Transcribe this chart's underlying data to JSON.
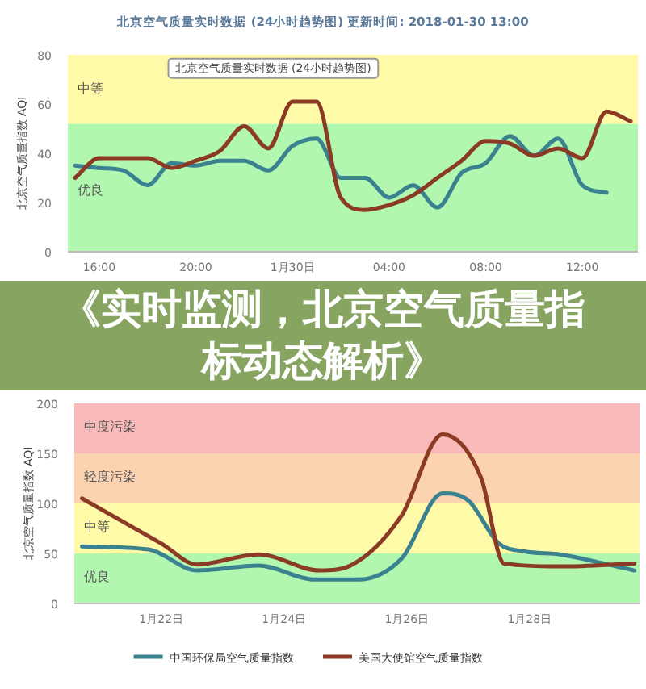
{
  "chart_data": [
    {
      "type": "line",
      "title": "北京空气质量实时数据 (24小时趋势图) 更新时间: 2018-01-30 13:00",
      "ylabel": "北京空气质量指数 AQI",
      "x": [
        "2018-01-29T15:00",
        "2018-01-29T16:00",
        "2018-01-29T17:00",
        "2018-01-29T18:00",
        "2018-01-29T19:00",
        "2018-01-29T20:00",
        "2018-01-29T21:00",
        "2018-01-29T22:00",
        "2018-01-29T23:00",
        "2018-01-30T00:00",
        "2018-01-30T01:00",
        "2018-01-30T02:00",
        "2018-01-30T03:00",
        "2018-01-30T04:00",
        "2018-01-30T05:00",
        "2018-01-30T06:00",
        "2018-01-30T07:00",
        "2018-01-30T08:00",
        "2018-01-30T09:00",
        "2018-01-30T10:00",
        "2018-01-30T11:00",
        "2018-01-30T12:00",
        "2018-01-30T13:00",
        "2018-01-30T14:00"
      ],
      "series": [
        {
          "color": "#3a8290",
          "values": [
            35,
            34,
            33,
            27,
            36,
            35,
            37,
            37,
            33,
            43,
            46,
            30,
            30,
            22,
            27,
            18,
            32,
            36,
            47,
            39,
            46,
            27,
            24,
            null
          ]
        },
        {
          "color": "#8b3a26",
          "values": [
            30,
            38,
            38,
            38,
            34,
            37,
            41,
            51,
            42,
            61,
            61,
            22,
            17,
            19,
            23,
            30,
            37,
            45,
            44,
            39,
            42,
            38,
            57,
            53
          ]
        }
      ],
      "xlim": [
        "2018-01-29T14:42",
        "2018-01-30T14:18"
      ],
      "ylim": [
        0,
        80
      ],
      "xticks": [
        {
          "value": "2018-01-29T16:00",
          "label": "16:00"
        },
        {
          "value": "2018-01-29T20:00",
          "label": "20:00"
        },
        {
          "value": "2018-01-30T00:00",
          "label": "1月30日"
        },
        {
          "value": "2018-01-30T04:00",
          "label": "04:00"
        },
        {
          "value": "2018-01-30T08:00",
          "label": "08:00"
        },
        {
          "value": "2018-01-30T12:00",
          "label": "12:00"
        }
      ],
      "yticks": [
        0,
        20,
        40,
        60,
        80
      ],
      "bands": [
        {
          "axis": "y",
          "from": 0,
          "to": 52,
          "label": "优良",
          "color": "#b2f7b0"
        },
        {
          "axis": "y",
          "from": 52,
          "to": 80,
          "label": "中等",
          "color": "#fffaa8"
        }
      ],
      "annotations": [
        "北京空气质量实时数据 (24小时趋势图)"
      ],
      "legend": false,
      "grid": false,
      "line_style": "solid"
    },
    {
      "type": "other",
      "title": "《实时监测，北京空气质量指标动态解析》"
    },
    {
      "type": "line",
      "ylabel": "北京空气质量指数 AQI",
      "x": [
        "2018-01-20T17:00",
        "2018-01-21T19:00",
        "2018-01-22T14:00",
        "2018-01-23T14:00",
        "2018-01-24T12:00",
        "2018-01-25T05:00",
        "2018-01-25T22:00",
        "2018-01-26T14:00",
        "2018-01-27T00:00",
        "2018-01-27T12:00",
        "2018-01-27T22:00",
        "2018-01-28T12:00",
        "2018-01-29T05:00",
        "2018-01-29T17:00"
      ],
      "series": [
        {
          "name": "中国环保局空气质量指数",
          "color": "#3a8290",
          "values": [
            57,
            54,
            33,
            38,
            24,
            24,
            45,
            110,
            103,
            60,
            52,
            49,
            40,
            33
          ]
        },
        {
          "name": "美国大使馆空气质量指数",
          "color": "#8b3a26",
          "x": [
            "2018-01-20T17:00",
            "2018-01-22T00:00",
            "2018-01-22T14:00",
            "2018-01-23T14:00",
            "2018-01-24T14:00",
            "2018-01-25T02:00",
            "2018-01-25T22:00",
            "2018-01-26T14:00",
            "2018-01-27T05:00",
            "2018-01-27T14:00",
            "2018-01-28T12:00",
            "2018-01-29T17:00"
          ],
          "values": [
            105,
            60,
            39,
            49,
            33,
            38,
            88,
            169,
            126,
            40,
            37,
            40
          ]
        }
      ],
      "xlim": [
        "2018-01-20T14:00",
        "2018-01-29T19:00"
      ],
      "ylim": [
        0,
        200
      ],
      "xticks": [
        {
          "value": "2018-01-22",
          "label": "1月22日"
        },
        {
          "value": "2018-01-24",
          "label": "1月24日"
        },
        {
          "value": "2018-01-26",
          "label": "1月26日"
        },
        {
          "value": "2018-01-28",
          "label": "1月28日"
        }
      ],
      "yticks": [
        0,
        50,
        100,
        150,
        200
      ],
      "bands": [
        {
          "axis": "y",
          "from": 0,
          "to": 50,
          "label": "优良",
          "color": "#b2f7b0"
        },
        {
          "axis": "y",
          "from": 50,
          "to": 100,
          "label": "中等",
          "color": "#fffaa8"
        },
        {
          "axis": "y",
          "from": 100,
          "to": 150,
          "label": "轻度污染",
          "color": "#fcd3b0"
        },
        {
          "axis": "y",
          "from": 150,
          "to": 200,
          "label": "中度污染",
          "color": "#f9b9b9"
        }
      ],
      "legend": "bottom",
      "grid": false,
      "line_style": "solid"
    }
  ]
}
